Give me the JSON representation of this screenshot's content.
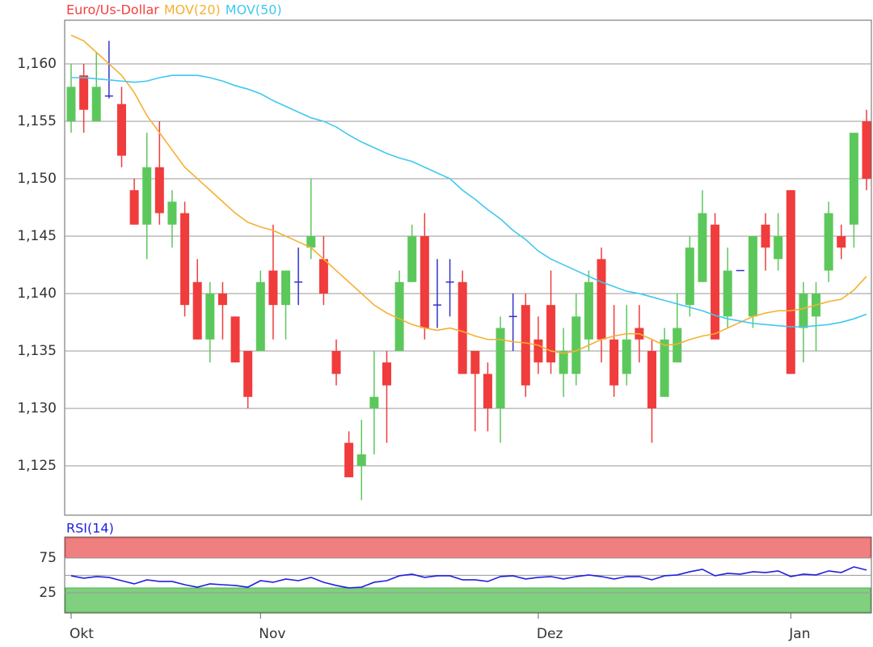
{
  "chart_data": [
    {
      "type": "candlestick",
      "categories": [
        "Okt",
        null,
        null,
        null,
        null,
        null,
        null,
        null,
        null,
        null,
        null,
        null,
        null,
        null,
        null,
        "Nov",
        null,
        null,
        null,
        null,
        null,
        null,
        null,
        null,
        null,
        null,
        null,
        null,
        null,
        null,
        null,
        null,
        null,
        null,
        null,
        null,
        null,
        "Dez",
        null,
        null,
        null,
        null,
        null,
        null,
        null,
        null,
        null,
        null,
        null,
        null,
        null,
        null,
        null,
        null,
        null,
        null,
        null,
        "Jan",
        null,
        null,
        null,
        null,
        null,
        null
      ],
      "series": [
        {
          "name": "Euro/Us-Dollar",
          "color": "#f04040",
          "up_color": "#5cc85c",
          "down_color": "#f03c3c",
          "doji_color": "#3333cc",
          "open": [
            1.155,
            1.159,
            1.155,
            1.1572,
            1.1565,
            1.149,
            1.146,
            1.151,
            1.146,
            1.147,
            1.141,
            1.136,
            1.14,
            1.138,
            1.135,
            1.135,
            1.142,
            1.139,
            1.141,
            1.144,
            1.143,
            1.135,
            1.127,
            1.125,
            1.13,
            1.134,
            1.135,
            1.141,
            1.145,
            1.139,
            1.141,
            1.141,
            1.135,
            1.133,
            1.13,
            1.138,
            1.139,
            1.136,
            1.139,
            1.133,
            1.133,
            1.136,
            1.143,
            1.136,
            1.133,
            1.137,
            1.135,
            1.131,
            1.134,
            1.139,
            1.141,
            1.146,
            1.138,
            1.142,
            1.138,
            1.146,
            1.143,
            1.149,
            1.137,
            1.138,
            1.142,
            1.145,
            1.146,
            1.155
          ],
          "high": [
            1.16,
            1.16,
            1.161,
            1.162,
            1.158,
            1.15,
            1.154,
            1.155,
            1.149,
            1.148,
            1.143,
            1.141,
            1.141,
            1.138,
            1.135,
            1.142,
            1.146,
            1.142,
            1.144,
            1.15,
            1.145,
            1.136,
            1.128,
            1.129,
            1.135,
            1.135,
            1.142,
            1.146,
            1.147,
            1.143,
            1.143,
            1.142,
            1.135,
            1.134,
            1.138,
            1.14,
            1.14,
            1.138,
            1.142,
            1.137,
            1.14,
            1.142,
            1.144,
            1.139,
            1.139,
            1.139,
            1.136,
            1.137,
            1.14,
            1.145,
            1.149,
            1.147,
            1.144,
            1.142,
            1.145,
            1.147,
            1.147,
            1.149,
            1.141,
            1.141,
            1.148,
            1.146,
            1.154,
            1.156
          ],
          "low": [
            1.154,
            1.154,
            1.155,
            1.157,
            1.151,
            1.146,
            1.143,
            1.146,
            1.144,
            1.138,
            1.136,
            1.134,
            1.136,
            1.134,
            1.13,
            1.135,
            1.136,
            1.136,
            1.139,
            1.143,
            1.139,
            1.132,
            1.124,
            1.122,
            1.126,
            1.127,
            1.135,
            1.141,
            1.136,
            1.137,
            1.138,
            1.133,
            1.128,
            1.128,
            1.127,
            1.135,
            1.131,
            1.133,
            1.133,
            1.131,
            1.132,
            1.135,
            1.134,
            1.131,
            1.132,
            1.134,
            1.127,
            1.131,
            1.134,
            1.138,
            1.141,
            1.136,
            1.137,
            1.142,
            1.137,
            1.142,
            1.142,
            1.133,
            1.134,
            1.135,
            1.141,
            1.143,
            1.144,
            1.149
          ],
          "close": [
            1.158,
            1.156,
            1.158,
            1.1572,
            1.152,
            1.146,
            1.151,
            1.147,
            1.148,
            1.139,
            1.136,
            1.14,
            1.139,
            1.134,
            1.131,
            1.141,
            1.139,
            1.142,
            1.141,
            1.145,
            1.14,
            1.133,
            1.124,
            1.126,
            1.131,
            1.132,
            1.141,
            1.145,
            1.137,
            1.139,
            1.141,
            1.133,
            1.133,
            1.13,
            1.137,
            1.138,
            1.132,
            1.134,
            1.134,
            1.135,
            1.138,
            1.141,
            1.136,
            1.132,
            1.136,
            1.136,
            1.13,
            1.136,
            1.137,
            1.144,
            1.147,
            1.136,
            1.142,
            1.142,
            1.145,
            1.144,
            1.145,
            1.133,
            1.14,
            1.14,
            1.147,
            1.144,
            1.154,
            1.15
          ]
        },
        {
          "name": "MOV(20)",
          "type": "line",
          "color": "#f5b030",
          "values": [
            1.1625,
            1.162,
            1.161,
            1.16,
            1.159,
            1.1575,
            1.1555,
            1.154,
            1.1525,
            1.151,
            1.15,
            1.149,
            1.148,
            1.147,
            1.1462,
            1.1458,
            1.1455,
            1.145,
            1.1445,
            1.144,
            1.143,
            1.142,
            1.141,
            1.14,
            1.139,
            1.1383,
            1.1378,
            1.1373,
            1.137,
            1.1368,
            1.137,
            1.1367,
            1.1363,
            1.136,
            1.136,
            1.1358,
            1.1357,
            1.1355,
            1.135,
            1.1348,
            1.135,
            1.1355,
            1.136,
            1.1363,
            1.1365,
            1.1365,
            1.136,
            1.1355,
            1.1356,
            1.136,
            1.1363,
            1.1365,
            1.137,
            1.1375,
            1.138,
            1.1383,
            1.1385,
            1.1385,
            1.1387,
            1.139,
            1.1393,
            1.1395,
            1.1403,
            1.1415
          ]
        },
        {
          "name": "MOV(50)",
          "type": "line",
          "color": "#40c8f0",
          "values": [
            1.1588,
            1.1588,
            1.1587,
            1.1586,
            1.1585,
            1.1584,
            1.1585,
            1.1588,
            1.159,
            1.159,
            1.159,
            1.1588,
            1.1585,
            1.1581,
            1.1578,
            1.1574,
            1.1568,
            1.1563,
            1.1558,
            1.1553,
            1.155,
            1.1545,
            1.1538,
            1.1532,
            1.1527,
            1.1522,
            1.1518,
            1.1515,
            1.151,
            1.1505,
            1.15,
            1.149,
            1.1482,
            1.1473,
            1.1465,
            1.1455,
            1.1447,
            1.1437,
            1.143,
            1.1425,
            1.142,
            1.1415,
            1.141,
            1.1406,
            1.1402,
            1.14,
            1.1397,
            1.1394,
            1.1391,
            1.1388,
            1.1385,
            1.1381,
            1.1378,
            1.1376,
            1.1374,
            1.1373,
            1.1372,
            1.1371,
            1.1371,
            1.1372,
            1.1373,
            1.1375,
            1.1378,
            1.1382
          ]
        }
      ],
      "ylim": [
        1.1207,
        1.1638
      ],
      "yticks": [
        {
          "value": 1.125,
          "label": "1,125"
        },
        {
          "value": 1.13,
          "label": "1,130"
        },
        {
          "value": 1.135,
          "label": "1,135"
        },
        {
          "value": 1.14,
          "label": "1,140"
        },
        {
          "value": 1.145,
          "label": "1,145"
        },
        {
          "value": 1.15,
          "label": "1,150"
        },
        {
          "value": 1.155,
          "label": "1,155"
        },
        {
          "value": 1.16,
          "label": "1,160"
        }
      ],
      "grid": true
    },
    {
      "type": "line",
      "series": [
        {
          "name": "RSI(14)",
          "color": "#2020e0",
          "values": [
            49.4,
            45.9,
            48.3,
            47.1,
            42.4,
            37.8,
            43.6,
            41.3,
            41.3,
            36.6,
            33.1,
            37.8,
            36.6,
            35.5,
            33.1,
            42.4,
            40.1,
            44.8,
            42.4,
            47.1,
            40.1,
            35.5,
            32.0,
            33.1,
            40.1,
            42.4,
            49.4,
            51.7,
            47.1,
            49.4,
            49.4,
            43.6,
            43.6,
            41.3,
            48.3,
            49.4,
            44.8,
            47.1,
            48.3,
            44.8,
            48.3,
            50.6,
            48.3,
            44.8,
            48.3,
            48.3,
            43.6,
            49.4,
            50.6,
            55.2,
            58.7,
            49.4,
            52.9,
            51.7,
            55.2,
            54.1,
            56.4,
            48.3,
            51.7,
            50.6,
            56.4,
            54.1,
            62.2,
            57.6
          ]
        }
      ],
      "ylim": [
        -4,
        105
      ],
      "yticks": [
        25,
        75
      ],
      "grid": true
    }
  ]
}
